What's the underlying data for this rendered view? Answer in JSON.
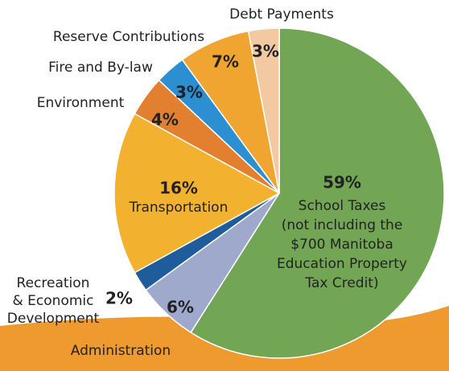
{
  "chart_data": {
    "type": "pie",
    "categories": [
      "School Taxes\n(not including the\n$700 Manitoba\nEducation Property\nTax Credit)",
      "Administration",
      "Recreation\n& Economic\nDevelopment",
      "Transportation",
      "Environment",
      "Fire and By-law",
      "Reserve Contributions",
      "Debt Payments"
    ],
    "values": [
      59,
      6,
      2,
      16,
      4,
      3,
      7,
      3
    ],
    "value_labels": [
      "59%",
      "6%",
      "2%",
      "16%",
      "4%",
      "3%",
      "7%",
      "3%"
    ],
    "colors": [
      "#72a655",
      "#9ea9cc",
      "#1f5c9c",
      "#f2b230",
      "#e2802f",
      "#2b8fd2",
      "#f1a531",
      "#f2c9a0"
    ]
  }
}
